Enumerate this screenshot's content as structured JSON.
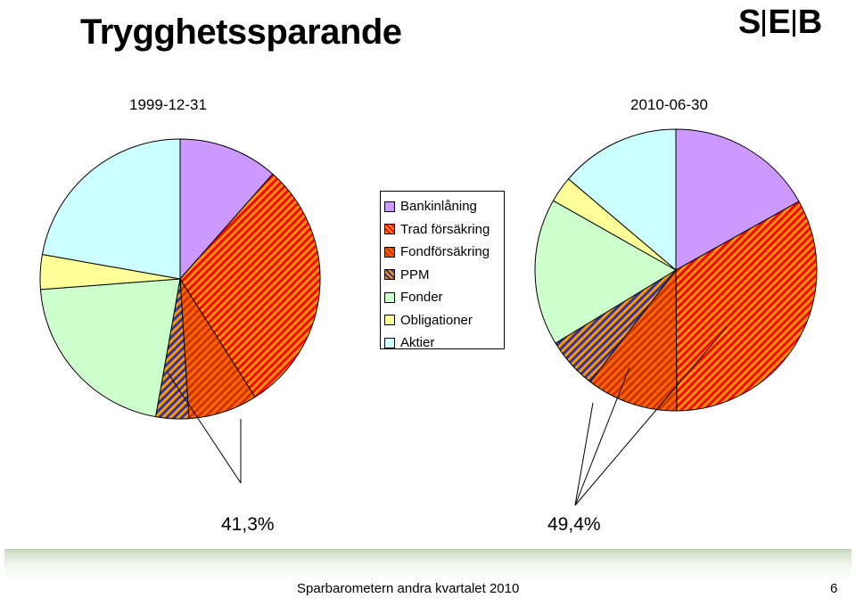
{
  "header": {
    "title": "Trygghetssparande",
    "logo_text": [
      "S",
      "E",
      "B"
    ]
  },
  "colors": {
    "bankinlaning": "#cc99ff",
    "trad_forsakring_a": "#ff9900",
    "trad_forsakring_b": "#ff0000",
    "fondforsakring_a": "#ff6600",
    "fondforsakring_b": "#cc3300",
    "ppm_a": "#ff9900",
    "ppm_b": "#333399",
    "fonder": "#ccffcc",
    "obligationer": "#ffff99",
    "aktier": "#ccffff"
  },
  "chart_data": [
    {
      "type": "pie",
      "title": "1999-12-31",
      "categories": [
        "Bankinlåning",
        "Trad försäkring",
        "Fondförsäkring",
        "PPM",
        "Fonder",
        "Obligationer",
        "Aktier"
      ],
      "values": [
        11.5,
        29.5,
        8.0,
        3.8,
        21.0,
        4.0,
        22.2
      ],
      "annotation": "41,3%"
    },
    {
      "type": "pie",
      "title": "2010-06-30",
      "categories": [
        "Bankinlåning",
        "Trad försäkring",
        "Fondförsäkring",
        "PPM",
        "Fonder",
        "Obligationer",
        "Aktier"
      ],
      "values": [
        16.9,
        33.0,
        10.5,
        5.9,
        16.9,
        3.0,
        13.8
      ],
      "annotation": "49,4%"
    }
  ],
  "legend": {
    "items": [
      {
        "label": "Bankinlåning",
        "style": "bankinlaning"
      },
      {
        "label": "Trad försäkring",
        "style": "trad"
      },
      {
        "label": "Fondförsäkring",
        "style": "fond"
      },
      {
        "label": "PPM",
        "style": "ppm"
      },
      {
        "label": "Fonder",
        "style": "fonder"
      },
      {
        "label": "Obligationer",
        "style": "oblig"
      },
      {
        "label": "Aktier",
        "style": "aktier"
      }
    ]
  },
  "footer": {
    "text": "Sparbarometern andra kvartalet 2010",
    "page": "6"
  }
}
